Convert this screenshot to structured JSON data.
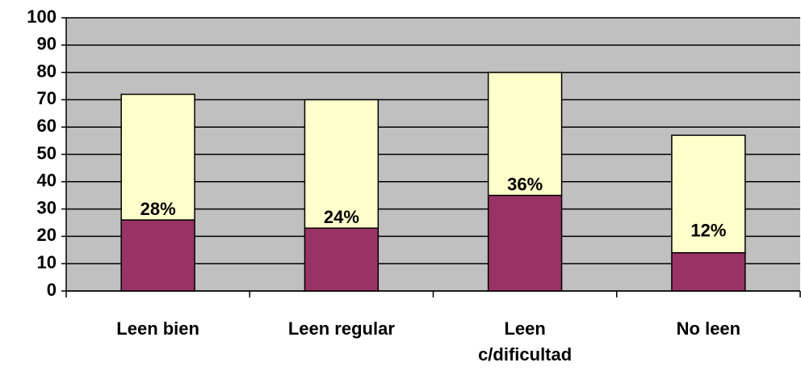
{
  "chart_data": {
    "type": "stacked_bar",
    "categories": [
      "Leen bien",
      "Leen regular",
      "Leen c/dificultad",
      "No leen"
    ],
    "series": [
      {
        "color": "#993366",
        "values": [
          26,
          23,
          35,
          14
        ]
      },
      {
        "color": "#ffffcc",
        "values": [
          46,
          47,
          45,
          43
        ]
      }
    ],
    "annotations": [
      "28%",
      "24%",
      "36%",
      "12%"
    ],
    "ylim": [
      0,
      100
    ],
    "yticks": [
      0,
      10,
      20,
      30,
      40,
      50,
      60,
      70,
      80,
      90,
      100
    ],
    "grid": true,
    "background": "#c0c0c0"
  }
}
